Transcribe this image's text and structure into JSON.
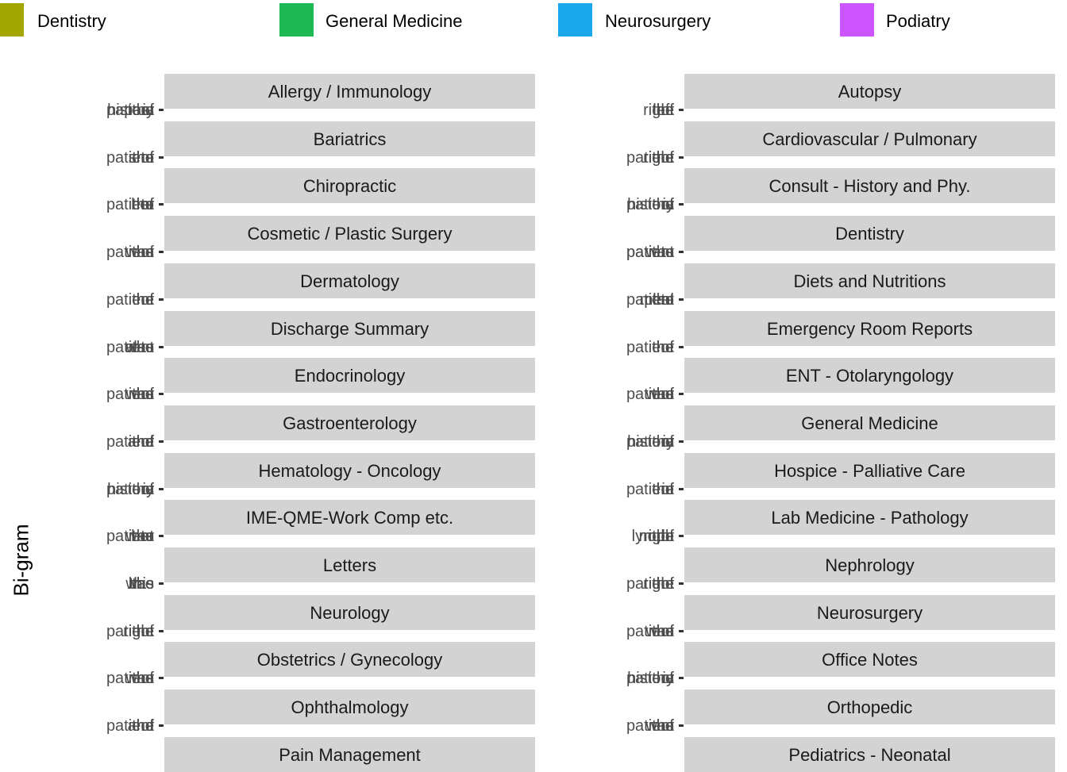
{
  "legend": [
    {
      "label": "Dentistry",
      "color": "#A3A500"
    },
    {
      "label": "General Medicine",
      "color": "#1DB954"
    },
    {
      "label": "Neurosurgery",
      "color": "#1AA7EC"
    },
    {
      "label": "Podiatry",
      "color": "#CC55FF"
    }
  ],
  "chart_data": {
    "type": "bar",
    "ylabel": "Bi-gram",
    "legend_position": "top",
    "panels": [
      {
        "title": "Allergy / Immunology",
        "ticks": [
          "the",
          "history",
          "patient",
          "past",
          "of",
          "is"
        ]
      },
      {
        "title": "Autopsy",
        "ticks": [
          "the",
          "of",
          "right",
          "left",
          "the"
        ]
      },
      {
        "title": "Bariatrics",
        "ticks": [
          "the",
          "she",
          "patient",
          "to",
          "of",
          "the"
        ]
      },
      {
        "title": "Cardiovascular / Pulmonary",
        "ticks": [
          "the",
          "the",
          "patient",
          "of",
          "right"
        ]
      },
      {
        "title": "Chiropractic",
        "ticks": [
          "the",
          "her",
          "patient",
          "to",
          "of",
          "the"
        ]
      },
      {
        "title": "Consult - History and Phy.",
        "ticks": [
          "the",
          "history",
          "patient",
          "of",
          "is"
        ]
      },
      {
        "title": "Cosmetic / Plastic Surgery",
        "ticks": [
          "the",
          "was",
          "patient",
          "of",
          "the"
        ]
      },
      {
        "title": "Dentistry",
        "ticks": [
          "patient",
          "the",
          "patient",
          "to",
          "was"
        ]
      },
      {
        "title": "Dermatology",
        "ticks": [
          "the",
          "patient",
          "of",
          "the"
        ]
      },
      {
        "title": "Diets and Nutritions",
        "ticks": [
          "the",
          "meal",
          "plan",
          "patient",
          "to"
        ]
      },
      {
        "title": "Discharge Summary",
        "ticks": [
          "patient",
          "the",
          "also",
          "to",
          "was"
        ]
      },
      {
        "title": "Emergency Room Reports",
        "ticks": [
          "the",
          "patient",
          "of",
          "the"
        ]
      },
      {
        "title": "Endocrinology",
        "ticks": [
          "the",
          "was",
          "patient",
          "of",
          "the"
        ]
      },
      {
        "title": "ENT - Otolaryngology",
        "ticks": [
          "the",
          "was",
          "patient",
          "of",
          "the"
        ]
      },
      {
        "title": "Gastroenterology",
        "ticks": [
          "the",
          "and",
          "patient",
          "of",
          "the"
        ]
      },
      {
        "title": "General Medicine",
        "ticks": [
          "the",
          "history",
          "patient",
          "of",
          "is"
        ]
      },
      {
        "title": "Hematology - Oncology",
        "ticks": [
          "the",
          "history",
          "patient",
          "of",
          "is"
        ]
      },
      {
        "title": "Hospice - Palliative Care",
        "ticks": [
          "the",
          "the",
          "patient",
          "of",
          "in"
        ]
      },
      {
        "title": "IME-QME-Work Comp etc.",
        "ticks": [
          "the",
          "her",
          "patient",
          "to",
          "was"
        ]
      },
      {
        "title": "Lab Medicine - Pathology",
        "ticks": [
          "lymph",
          "the",
          "node",
          "right",
          "of"
        ]
      },
      {
        "title": "Letters",
        "ticks": [
          "the",
          "he",
          "this",
          "has",
          "was"
        ]
      },
      {
        "title": "Nephrology",
        "ticks": [
          "the",
          "the",
          "patient",
          "of",
          "right"
        ]
      },
      {
        "title": "Neurology",
        "ticks": [
          "the",
          "the",
          "patient",
          "of",
          "right"
        ]
      },
      {
        "title": "Neurosurgery",
        "ticks": [
          "the",
          "was",
          "patient",
          "of",
          "the"
        ]
      },
      {
        "title": "Obstetrics / Gynecology",
        "ticks": [
          "the",
          "was",
          "patient",
          "of",
          "the"
        ]
      },
      {
        "title": "Office Notes",
        "ticks": [
          "the",
          "history",
          "patient",
          "is",
          "of"
        ]
      },
      {
        "title": "Ophthalmology",
        "ticks": [
          "the",
          "and",
          "patient",
          "of",
          "the"
        ]
      },
      {
        "title": "Orthopedic",
        "ticks": [
          "the",
          "was",
          "patient",
          "of",
          "the"
        ]
      },
      {
        "title": "Pain Management",
        "ticks": []
      },
      {
        "title": "Pediatrics - Neonatal",
        "ticks": []
      }
    ]
  }
}
